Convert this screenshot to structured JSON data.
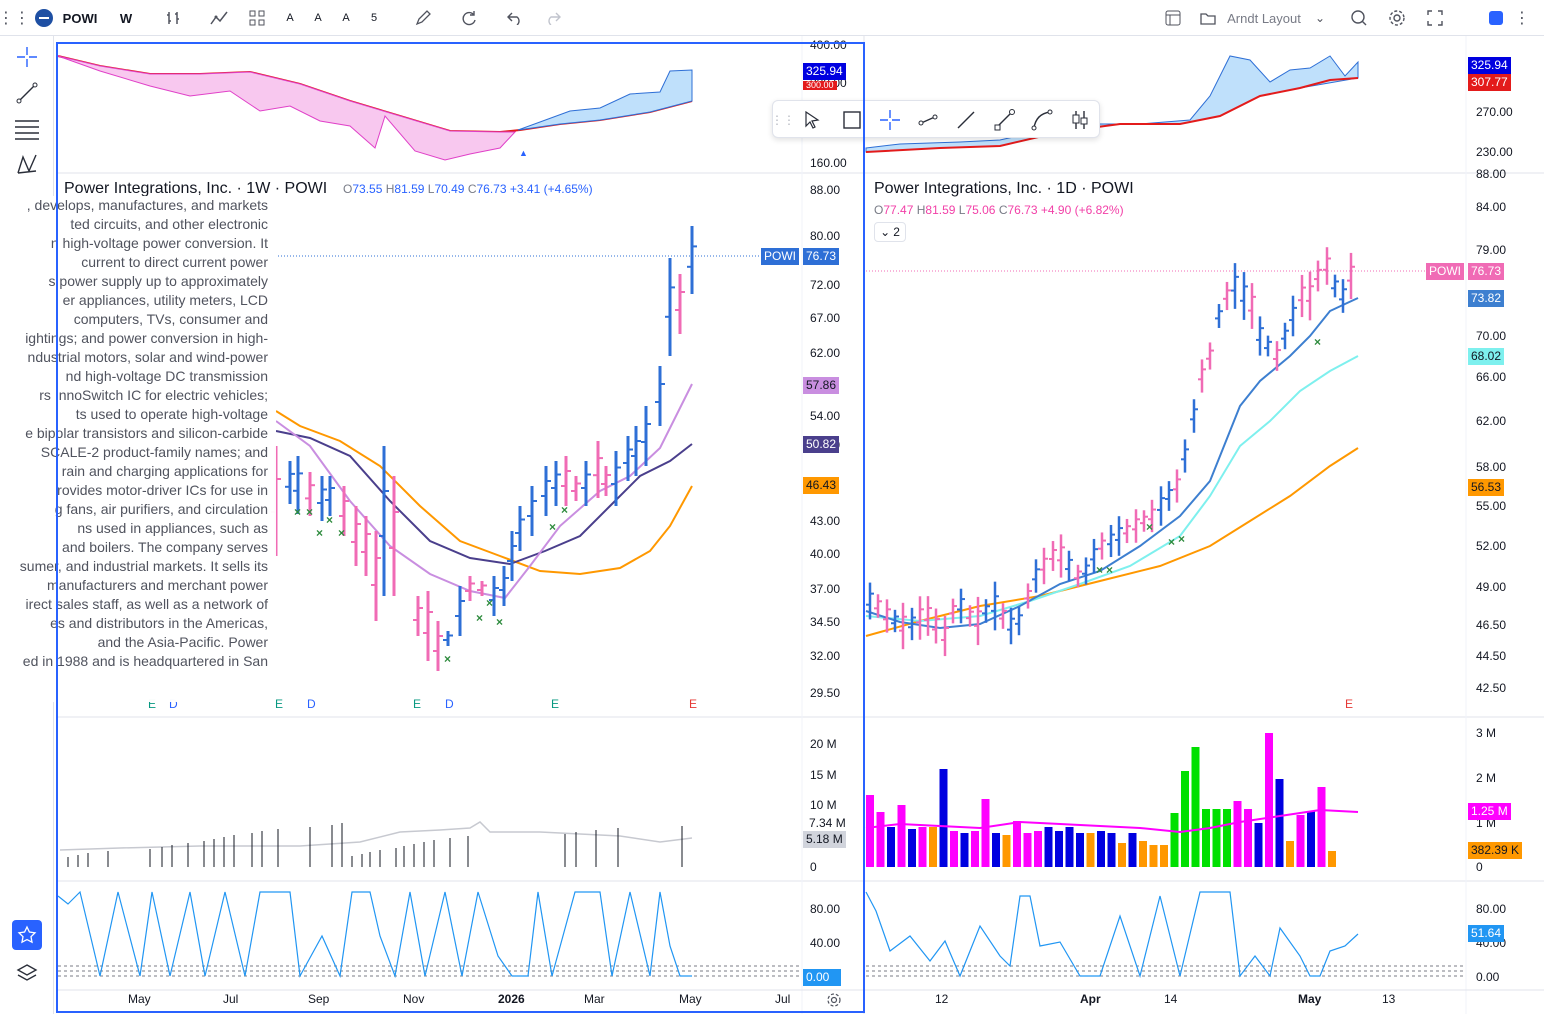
{
  "toolbar": {
    "symbol": "POWI",
    "interval": "W",
    "alert_a1": "A",
    "alert_a2": "A",
    "alert_a3": "A",
    "alert_count": "5",
    "layout_name": "Arndt Layout"
  },
  "left_chart": {
    "title": "Power Integrations, Inc. · 1W · POWI",
    "open_label": "O",
    "open": "73.55",
    "high_label": "H",
    "high": "81.59",
    "low_label": "L",
    "low": "70.49",
    "close_label": "C",
    "close": "76.73",
    "change": "+3.41 (+4.65%)",
    "price_axis": [
      "88.00",
      "80.00",
      "72.00",
      "67.00",
      "62.00",
      "54.00",
      "50.00",
      "43.00",
      "40.00",
      "37.00",
      "34.50",
      "32.00",
      "29.50"
    ],
    "top_axis": [
      "400.00",
      "300.00",
      "160.00"
    ],
    "tags": {
      "top_blue": "325.94",
      "top_red": "300.00",
      "symbol_tag": "POWI",
      "last": "76.73",
      "ma1": "57.86",
      "ma2": "50.82",
      "ma3": "46.43",
      "vol_avg": "7.34 M",
      "vol": "5.18 M",
      "osc": "0.00"
    },
    "vol_axis": [
      "20 M",
      "15 M",
      "10 M",
      "0"
    ],
    "osc_axis": [
      "80.00",
      "40.00"
    ],
    "time_labels": [
      "May",
      "Jul",
      "Sep",
      "Nov",
      "2026",
      "Mar",
      "May",
      "Jul"
    ],
    "events": [
      "E",
      "D",
      "E",
      "D",
      "E",
      "D",
      "E",
      "E"
    ]
  },
  "right_chart": {
    "title": "Power Integrations, Inc. · 1D · POWI",
    "open_label": "O",
    "open": "77.47",
    "high_label": "H",
    "high": "81.59",
    "low_label": "L",
    "low": "75.06",
    "close_label": "C",
    "close": "76.73",
    "change": "+4.90 (+6.82%)",
    "collapse_count": "2",
    "price_axis": [
      "88.00",
      "84.00",
      "79.00",
      "70.00",
      "66.00",
      "62.00",
      "58.00",
      "55.00",
      "52.00",
      "49.00",
      "46.50",
      "44.50",
      "42.50"
    ],
    "top_axis": [
      "270.00",
      "230.00"
    ],
    "tags": {
      "top_blue": "325.94",
      "top_red": "307.77",
      "symbol_tag": "POWI",
      "last": "76.73",
      "ma1": "73.82",
      "ma2": "68.02",
      "ma3": "56.53",
      "vol_avg": "1.25 M",
      "vol": "382.39 K",
      "osc": "51.64"
    },
    "vol_axis": [
      "3 M",
      "2 M",
      "1 M",
      "0"
    ],
    "osc_axis": [
      "80.00",
      "40.00",
      "0.00"
    ],
    "time_labels": [
      "12",
      "Apr",
      "14",
      "May",
      "13"
    ],
    "events": [
      "E"
    ]
  },
  "description_lines": [
    ", develops, manufactures, and markets",
    "ted circuits, and other electronic",
    "n high-voltage power conversion. It",
    "current to direct current power",
    "s power supply up to approximately",
    "er appliances, utility meters, LCD",
    "computers, TVs, consumer and",
    "ightings; and power conversion in high-",
    "ndustrial motors, solar and wind-power",
    "nd high-voltage DC transmission",
    "rs InnoSwitch IC for electric vehicles;",
    "ts used to operate high-voltage",
    "e bipolar transistors and silicon-carbide",
    "SCALE-2 product-family names; and",
    "rain and charging applications for",
    "rovides motor-driver ICs for use in",
    "g fans, air purifiers, and circulation",
    "ns used in appliances, such as",
    " and boilers. The company serves",
    "sumer, and industrial markets. It sells its",
    "manufacturers and merchant power",
    "irect sales staff, as well as a network of",
    "es and distributors in the Americas,",
    "and the Asia-Pacific. Power",
    "ed in 1988 and is headquartered in San"
  ],
  "colors": {
    "up_bar": "#2e6fd6",
    "down_bar": "#f06bb5",
    "accent": "#2962ff",
    "ma_orange": "#ff9800",
    "ma_purple": "#4a3f8c",
    "ma_violet": "#c98ee0",
    "ma_cyan": "#7ef0ee",
    "ma_blue": "#3d7fd0",
    "red_line": "#e31b1b"
  }
}
